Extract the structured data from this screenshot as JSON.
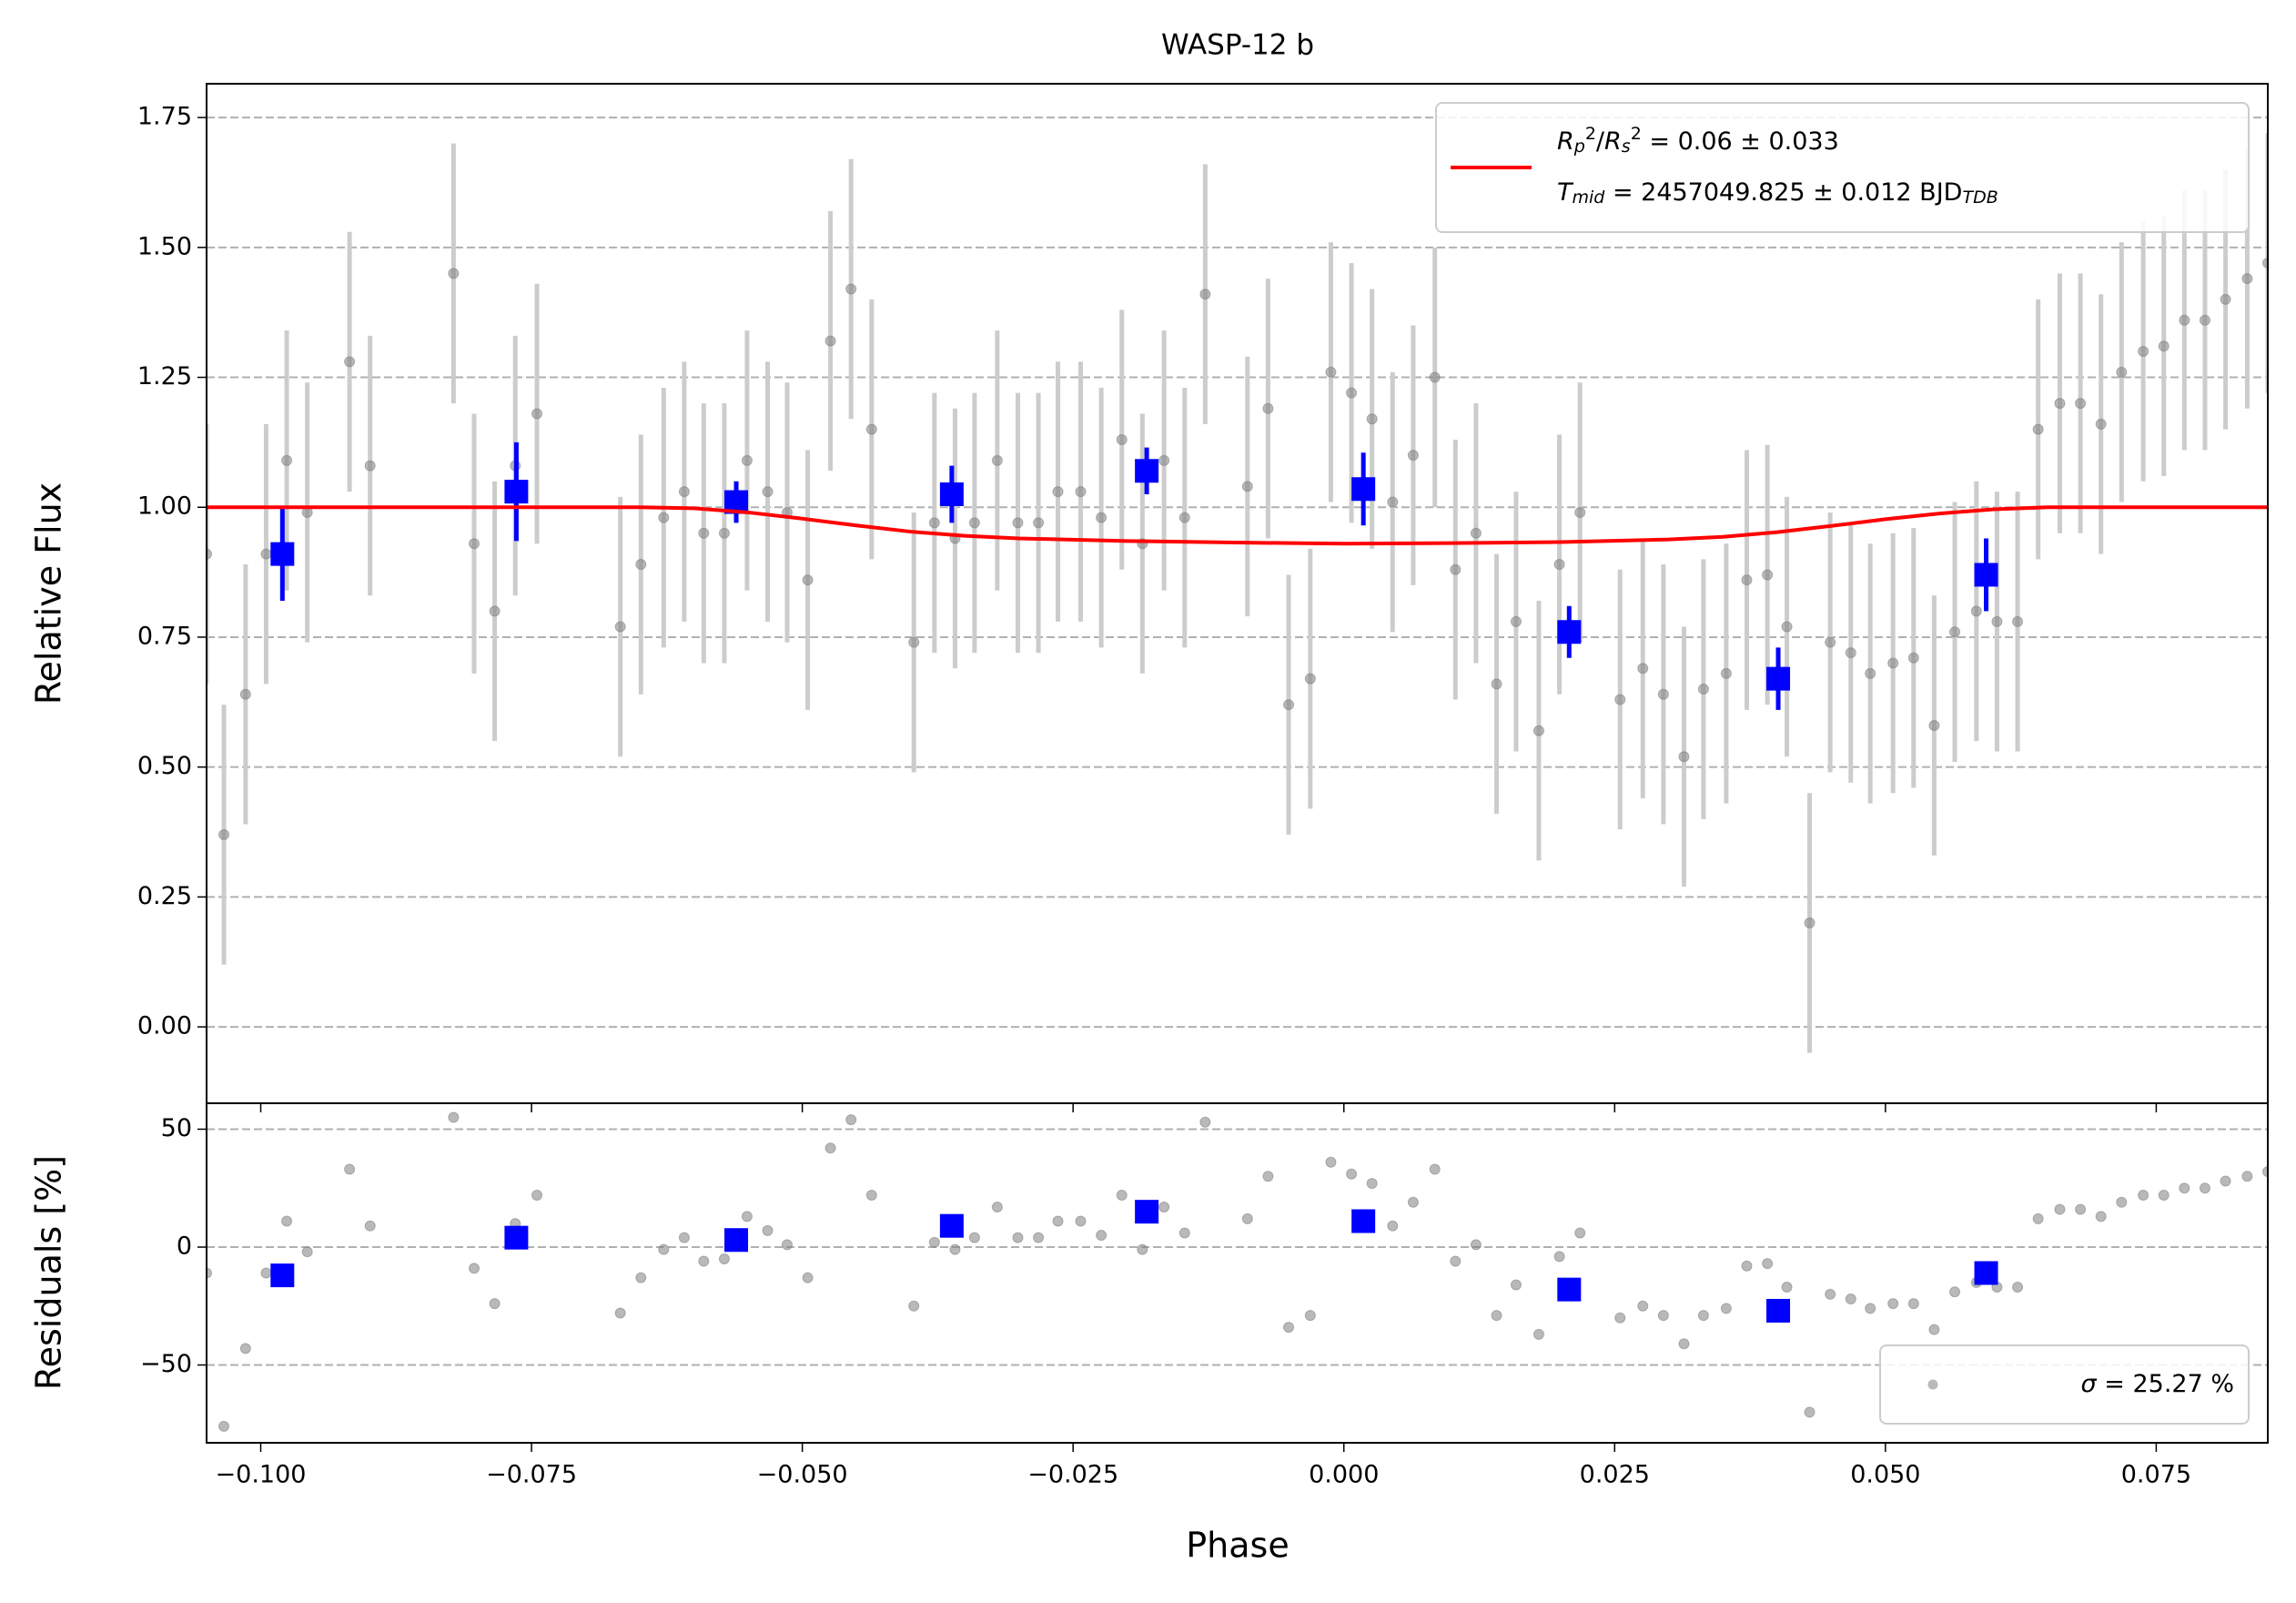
{
  "chart_data": [
    {
      "type": "scatter",
      "title": "WASP-12 b",
      "ylabel": "Relative Flux",
      "xlim": [
        -0.105,
        0.0853
      ],
      "ylim": [
        -0.147,
        1.815
      ],
      "yticks": [
        {
          "value": 0,
          "label": "0.00"
        },
        {
          "value": 0.25,
          "label": "0.25"
        },
        {
          "value": 0.5,
          "label": "0.50"
        },
        {
          "value": 0.75,
          "label": "0.75"
        },
        {
          "value": 1,
          "label": "1.00"
        },
        {
          "value": 1.25,
          "label": "1.25"
        },
        {
          "value": 1.5,
          "label": "1.50"
        },
        {
          "value": 1.75,
          "label": "1.75"
        }
      ],
      "grid": true,
      "legend": "upper right",
      "series": [
        {
          "marker": "circle",
          "color": "#808080",
          "ecolor": "#cccccc",
          "error": 0.25,
          "x": [
            -0.105,
            -0.1034,
            -0.1014,
            -0.0995,
            -0.0976,
            -0.0957,
            -0.0918,
            -0.0899,
            -0.0822,
            -0.0803,
            -0.0784,
            -0.0765,
            -0.0745,
            -0.0668,
            -0.0649,
            -0.0628,
            -0.0609,
            -0.0591,
            -0.0572,
            -0.0551,
            -0.0532,
            -0.0514,
            -0.0495,
            -0.0474,
            -0.0455,
            -0.0436,
            -0.0397,
            -0.0378,
            -0.0359,
            -0.0341,
            -0.032,
            -0.0301,
            -0.0282,
            -0.0264,
            -0.0243,
            -0.0224,
            -0.0205,
            -0.0186,
            -0.0166,
            -0.0147,
            -0.0128,
            -0.0089,
            -0.007,
            -0.0051,
            -0.0031,
            -0.0012,
            0.0007,
            0.0026,
            0.0045,
            0.0064,
            0.0084,
            0.0103,
            0.0122,
            0.0141,
            0.0159,
            0.018,
            0.0199,
            0.0218,
            0.0255,
            0.0276,
            0.0295,
            0.0314,
            0.0332,
            0.0353,
            0.0372,
            0.0391,
            0.0409,
            0.043,
            0.0449,
            0.0468,
            0.0486,
            0.0507,
            0.0526,
            0.0545,
            0.0564,
            0.0584,
            0.0603,
            0.0622,
            0.0641,
            0.0661,
            0.068,
            0.0699,
            0.0718,
            0.0738,
            0.0757,
            0.0776,
            0.0795,
            0.0814,
            0.0834,
            0.0853
          ],
          "values": [
            0.91,
            0.37,
            0.64,
            0.91,
            1.09,
            0.99,
            1.28,
            1.08,
            1.45,
            0.93,
            0.8,
            1.08,
            1.18,
            0.77,
            0.89,
            0.98,
            1.03,
            0.95,
            0.95,
            1.09,
            1.03,
            0.99,
            0.86,
            1.32,
            1.42,
            1.15,
            0.74,
            0.97,
            0.94,
            0.97,
            1.09,
            0.97,
            0.97,
            1.03,
            1.03,
            0.98,
            1.13,
            0.93,
            1.09,
            0.98,
            1.41,
            1.04,
            1.19,
            0.62,
            0.67,
            1.26,
            1.22,
            1.17,
            1.01,
            1.1,
            1.25,
            0.88,
            0.95,
            0.66,
            0.78,
            0.57,
            0.89,
            0.99,
            0.63,
            0.69,
            0.64,
            0.52,
            0.65,
            0.68,
            0.86,
            0.87,
            0.77,
            0.2,
            0.74,
            0.72,
            0.68,
            0.7,
            0.71,
            0.58,
            0.76,
            0.8,
            0.78,
            0.78,
            1.15,
            1.2,
            1.2,
            1.16,
            1.26,
            1.3,
            1.31,
            1.36,
            1.36,
            1.4,
            1.44,
            1.47
          ]
        },
        {
          "marker": "square",
          "color": "#0000ff",
          "ecolor": "#0000ff",
          "x": [
            -0.098,
            -0.0764,
            -0.0561,
            -0.0362,
            -0.0182,
            0.0018,
            0.0208,
            0.0401,
            0.0593
          ],
          "values": [
            0.91,
            1.03,
            1.01,
            1.025,
            1.07,
            1.035,
            0.76,
            0.67,
            0.87
          ],
          "errors": [
            0.09,
            0.095,
            0.04,
            0.055,
            0.045,
            0.07,
            0.05,
            0.06,
            0.07
          ]
        },
        {
          "marker": "line",
          "color": "#ff0000",
          "name": [
            [
              {
                "text": "R",
                "math": true
              },
              {
                "text": "p",
                "math": true,
                "script": "sub"
              },
              {
                "text": "2",
                "script": "sup"
              },
              {
                "text": "/"
              },
              {
                "text": "R",
                "math": true
              },
              {
                "text": "s",
                "math": true,
                "script": "sub"
              },
              {
                "text": "2",
                "script": "sup"
              },
              {
                "text": " = 0.06 ± 0.033"
              }
            ],
            [
              {
                "text": "T",
                "math": true
              },
              {
                "text": "mid",
                "math": true,
                "script": "sub"
              },
              {
                "text": " = 2457049.825 ± 0.012 BJD"
              },
              {
                "text": "TDB",
                "math": true,
                "script": "sub"
              }
            ]
          ],
          "x": [
            -0.105,
            -0.065,
            -0.06,
            -0.055,
            -0.05,
            -0.045,
            -0.04,
            -0.035,
            -0.03,
            -0.02,
            -0.01,
            0,
            0.01,
            0.02,
            0.03,
            0.035,
            0.04,
            0.045,
            0.05,
            0.055,
            0.06,
            0.065,
            0.0853
          ],
          "values": [
            1,
            1,
            0.998,
            0.99,
            0.978,
            0.965,
            0.953,
            0.945,
            0.94,
            0.935,
            0.932,
            0.93,
            0.931,
            0.933,
            0.938,
            0.943,
            0.952,
            0.964,
            0.977,
            0.988,
            0.996,
            1,
            1
          ]
        }
      ]
    },
    {
      "type": "scatter",
      "ylabel": "Residuals [%]",
      "xlabel": "Phase",
      "xlim": [
        -0.105,
        0.0853
      ],
      "ylim": [
        -83,
        61
      ],
      "xticks": [
        {
          "value": -0.1,
          "label": "−0.100"
        },
        {
          "value": -0.075,
          "label": "−0.075"
        },
        {
          "value": -0.05,
          "label": "−0.050"
        },
        {
          "value": -0.025,
          "label": "−0.025"
        },
        {
          "value": 0,
          "label": "0.000"
        },
        {
          "value": 0.025,
          "label": "0.025"
        },
        {
          "value": 0.05,
          "label": "0.050"
        },
        {
          "value": 0.075,
          "label": "0.075"
        }
      ],
      "yticks": [
        {
          "value": -50,
          "label": "−50"
        },
        0,
        50
      ],
      "grid": true,
      "legend": "lower right",
      "series": [
        {
          "marker": "circle",
          "color": "#808080",
          "name": [
            [
              {
                "text": "σ",
                "math": true
              },
              {
                "text": " = 25.27 %"
              }
            ]
          ],
          "x": [
            -0.105,
            -0.1034,
            -0.1014,
            -0.0995,
            -0.0976,
            -0.0957,
            -0.0918,
            -0.0899,
            -0.0822,
            -0.0803,
            -0.0784,
            -0.0765,
            -0.0745,
            -0.0668,
            -0.0649,
            -0.0628,
            -0.0609,
            -0.0591,
            -0.0572,
            -0.0551,
            -0.0532,
            -0.0514,
            -0.0495,
            -0.0474,
            -0.0455,
            -0.0436,
            -0.0397,
            -0.0378,
            -0.0359,
            -0.0341,
            -0.032,
            -0.0301,
            -0.0282,
            -0.0264,
            -0.0243,
            -0.0224,
            -0.0205,
            -0.0186,
            -0.0166,
            -0.0147,
            -0.0128,
            -0.0089,
            -0.007,
            -0.0051,
            -0.0031,
            -0.0012,
            0.0007,
            0.0026,
            0.0045,
            0.0064,
            0.0084,
            0.0103,
            0.0122,
            0.0141,
            0.0159,
            0.018,
            0.0199,
            0.0218,
            0.0255,
            0.0276,
            0.0295,
            0.0314,
            0.0332,
            0.0353,
            0.0372,
            0.0391,
            0.0409,
            0.043,
            0.0449,
            0.0468,
            0.0486,
            0.0507,
            0.0526,
            0.0545,
            0.0564,
            0.0584,
            0.0603,
            0.0622,
            0.0641,
            0.0661,
            0.068,
            0.0699,
            0.0718,
            0.0738,
            0.0757,
            0.0776,
            0.0795,
            0.0814,
            0.0834,
            0.0853
          ],
          "values": [
            -11,
            -76,
            -43,
            -11,
            11,
            -2,
            33,
            9,
            55,
            -9,
            -24,
            10,
            22,
            -28,
            -13,
            -1,
            4,
            -6,
            -5,
            13,
            7,
            1,
            -13,
            42,
            54,
            22,
            -25,
            2,
            -1,
            4,
            17,
            4,
            4,
            11,
            11,
            5,
            22,
            -1,
            17,
            6,
            53,
            12,
            30,
            -34,
            -29,
            36,
            31,
            27,
            9,
            19,
            33,
            -6,
            1,
            -29,
            -16,
            -37,
            -4,
            6,
            -30,
            -25,
            -29,
            -41,
            -29,
            -26,
            -8,
            -7,
            -17,
            -70,
            -20,
            -22,
            -26,
            -24,
            -24,
            -35,
            -19,
            -15,
            -17,
            -17,
            12,
            16,
            16,
            13,
            19,
            22,
            22,
            25,
            25,
            28,
            30,
            32
          ]
        },
        {
          "marker": "square",
          "color": "#0000ff",
          "x": [
            -0.098,
            -0.0764,
            -0.0561,
            -0.0362,
            -0.0182,
            0.0018,
            0.0208,
            0.0401,
            0.0593
          ],
          "values": [
            -12,
            4,
            3,
            9,
            15,
            11,
            -18,
            -27,
            -11
          ]
        }
      ]
    }
  ]
}
